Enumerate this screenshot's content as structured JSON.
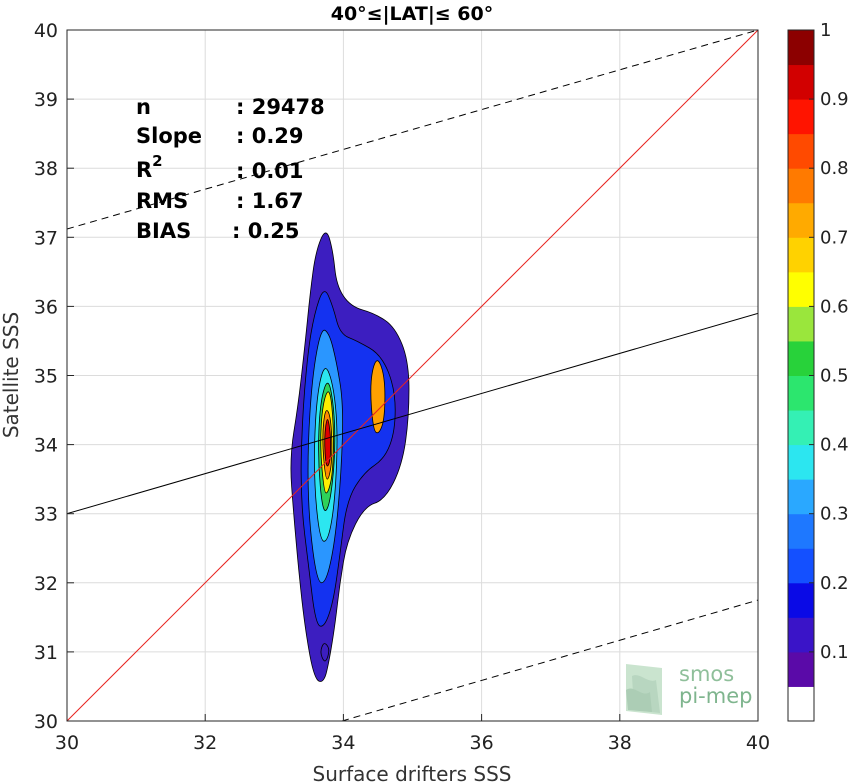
{
  "chart_data": {
    "type": "contour",
    "title": "40°≤|LAT|≤ 60°",
    "xlabel": "Surface drifters SSS",
    "ylabel": "Satellite SSS",
    "xlim": [
      30,
      40
    ],
    "ylim": [
      30,
      40
    ],
    "xticks": [
      "30",
      "32",
      "34",
      "36",
      "38",
      "40"
    ],
    "yticks": [
      "30",
      "31",
      "32",
      "33",
      "34",
      "35",
      "36",
      "37",
      "38",
      "39",
      "40"
    ],
    "grid": true,
    "stats": [
      {
        "label": "n",
        "value": ": 29478"
      },
      {
        "label": "Slope",
        "value": ": 0.29"
      },
      {
        "label": "R",
        "sup": "2",
        "value": ": 0.01"
      },
      {
        "label": "RMS",
        "value": ": 1.67"
      },
      {
        "label": "BIAS",
        "value": ": 0.25"
      }
    ],
    "lines": {
      "identity": {
        "from": [
          30,
          30
        ],
        "to": [
          40,
          40
        ],
        "color": "#e8231f"
      },
      "regression": {
        "from": [
          30,
          33.0
        ],
        "to": [
          40,
          35.9
        ],
        "color": "#000000"
      },
      "upper_bound": {
        "from": [
          30,
          37.12
        ],
        "to": [
          40,
          40
        ],
        "color": "#000000",
        "dash": true
      },
      "lower_bound": {
        "from": [
          33.98,
          30
        ],
        "to": [
          40,
          31.75
        ],
        "color": "#000000",
        "dash": true
      }
    },
    "density_peak": {
      "x": 33.8,
      "y": 34.0
    },
    "colorbar": {
      "range": [
        0,
        1
      ],
      "ticks": [
        "0.1",
        "0.2",
        "0.3",
        "0.4",
        "0.5",
        "0.6",
        "0.7",
        "0.8",
        "0.9",
        "1"
      ],
      "colors": [
        "#ffffff",
        "#5a0aa8",
        "#3a14c8",
        "#0a0ae6",
        "#1450ff",
        "#1e78ff",
        "#2aa8ff",
        "#2ce6f0",
        "#34f0b4",
        "#2ce66e",
        "#28d23a",
        "#9ae63c",
        "#ffff00",
        "#ffd200",
        "#ffaa00",
        "#ff7a00",
        "#ff4a00",
        "#ff1400",
        "#d20000",
        "#8c0000"
      ]
    }
  },
  "logo": {
    "line1": "smos",
    "line2": "pi-mep"
  }
}
